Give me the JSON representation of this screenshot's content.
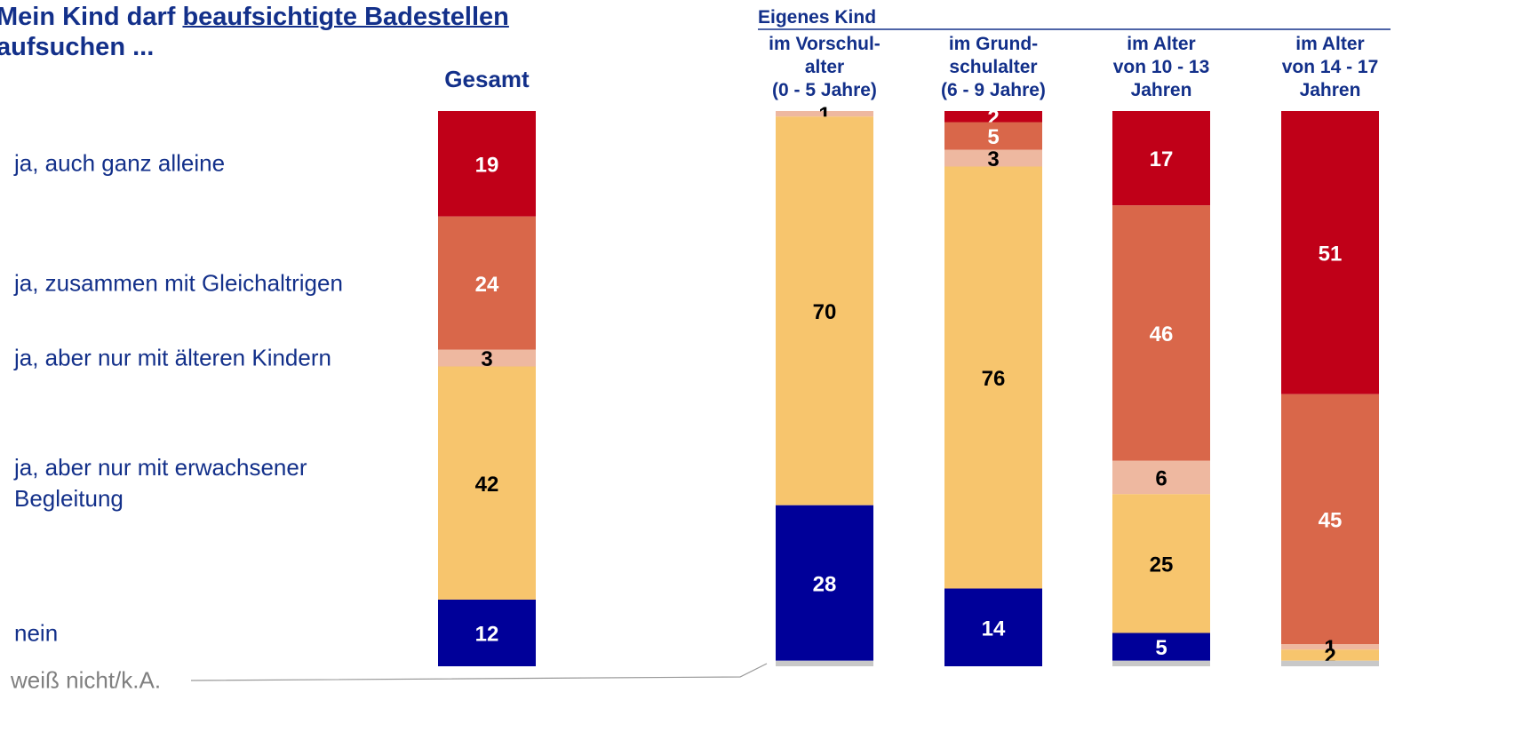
{
  "chart_data": {
    "type": "stacked_bar",
    "title_start": "Mein Kind darf",
    "title_underlined": "beaufsichtigte Badestellen",
    "title_end": "aufsuchen ...",
    "group_label": "Eigenes Kind",
    "categories": [
      [
        "Gesamt"
      ],
      [
        "im Vorschul-",
        "alter",
        "(0 - 5 Jahre)"
      ],
      [
        "im Grund-",
        "schulalter",
        "(6 - 9 Jahre)"
      ],
      [
        "im Alter",
        "von 10 - 13",
        "Jahren"
      ],
      [
        "im Alter",
        "von 14 - 17",
        "Jahren"
      ]
    ],
    "ylim": [
      0,
      100
    ],
    "series": [
      {
        "name": "ja, auch ganz alleine",
        "color": "#c00018",
        "label_color": "#ffffff",
        "values": [
          19,
          0,
          2,
          17,
          51
        ]
      },
      {
        "name": "ja, zusammen mit Gleichaltrigen",
        "color": "#d9674a",
        "label_color": "#ffffff",
        "values": [
          24,
          0,
          5,
          46,
          45
        ]
      },
      {
        "name": "ja, aber nur mit älteren Kindern",
        "color": "#eeb8a0",
        "label_color": "#000000",
        "values": [
          3,
          1,
          3,
          6,
          1
        ]
      },
      {
        "name": "ja, aber nur mit erwachsener Begleitung",
        "color": "#f7c56d",
        "label_color": "#000000",
        "values": [
          42,
          70,
          76,
          25,
          2
        ]
      },
      {
        "name": "nein",
        "color": "#000099",
        "label_color": "#ffffff",
        "values": [
          12,
          28,
          14,
          5,
          0
        ]
      },
      {
        "name": "weiß nicht/k.A.",
        "color": "#c8c8c8",
        "label_color": "#000000",
        "values": [
          0,
          1,
          0,
          1,
          1
        ],
        "labels_hidden": true
      }
    ]
  }
}
